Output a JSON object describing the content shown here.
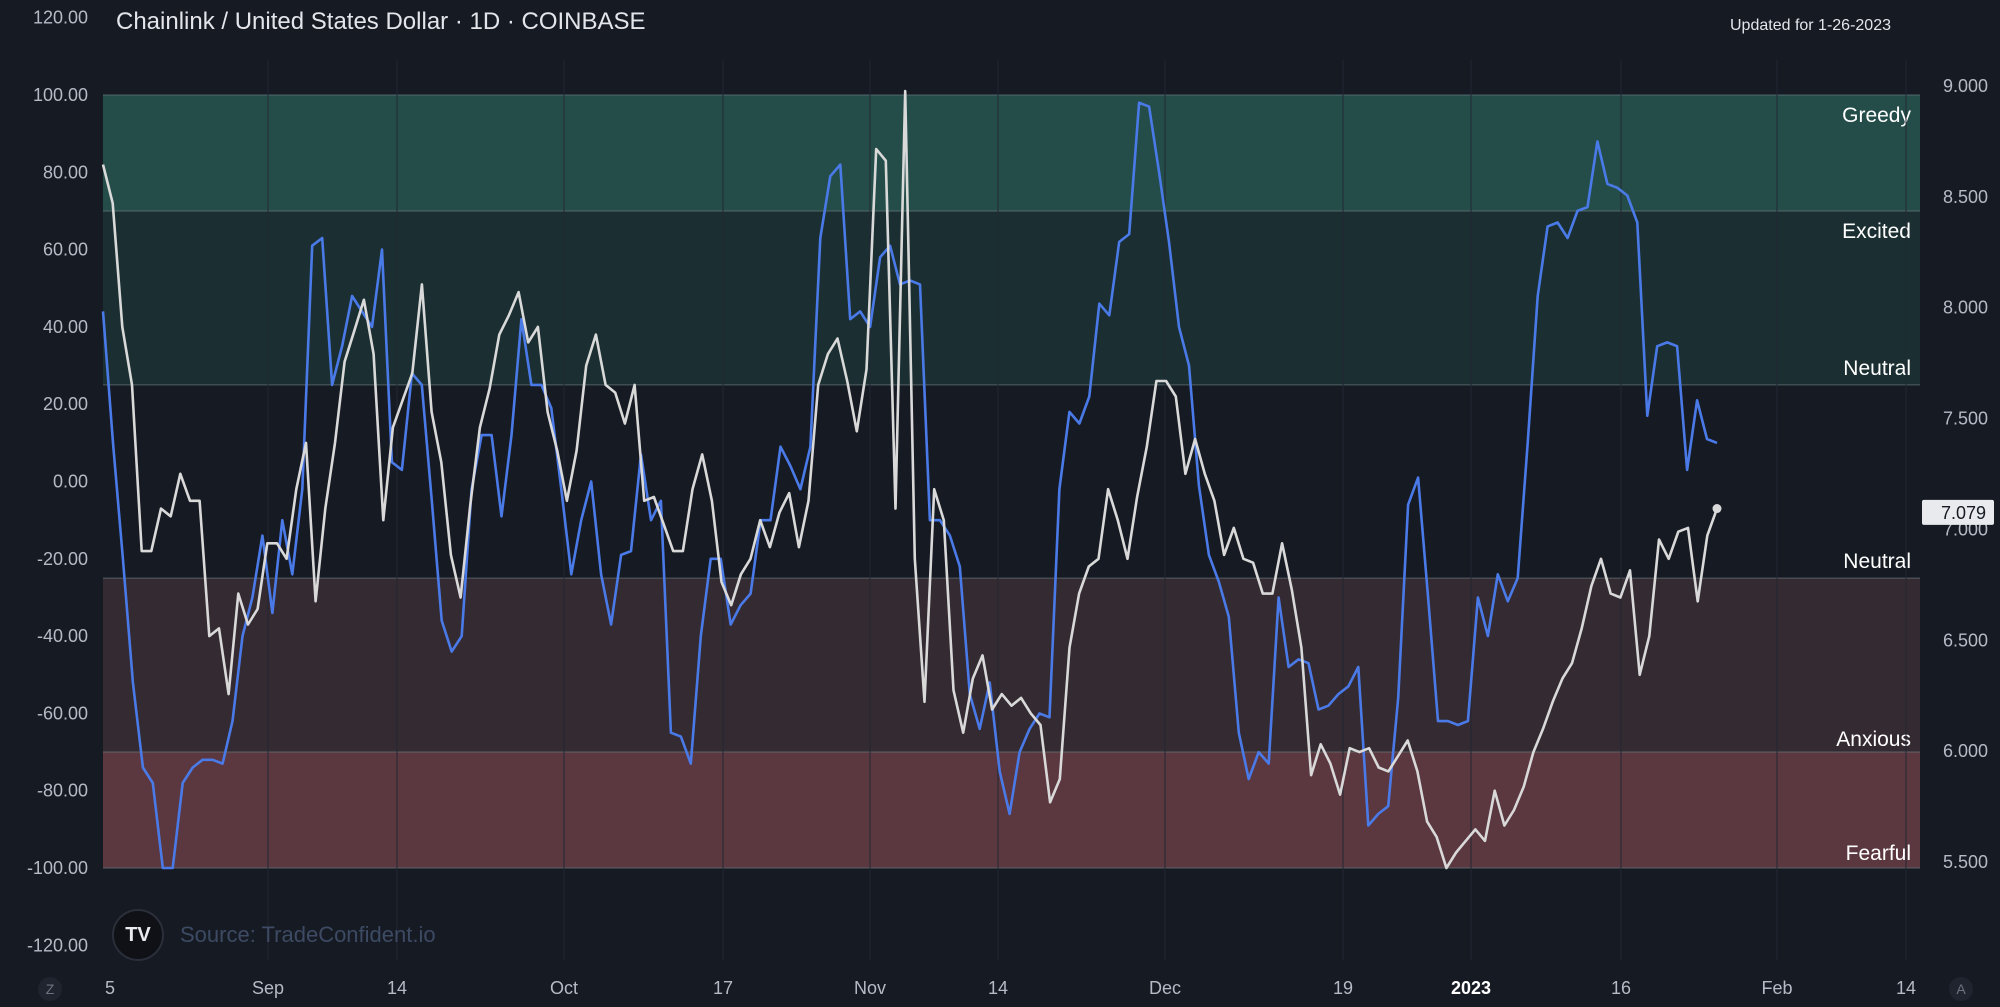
{
  "header": {
    "title": "Chainlink / United States Dollar · 1D · COINBASE",
    "updated": "Updated for 1-26-2023"
  },
  "source": {
    "logo_text": "TV",
    "label": "Source: TradeConfident.io"
  },
  "corner_buttons": {
    "left": "Z",
    "right": "A"
  },
  "chart_data": {
    "type": "line",
    "title": "Chainlink / United States Dollar · 1D · COINBASE",
    "x_ticks": [
      "5",
      "Sep",
      "14",
      "Oct",
      "17",
      "Nov",
      "14",
      "Dec",
      "19",
      "2023",
      "16",
      "Feb",
      "14"
    ],
    "y_left": {
      "range": [
        -120,
        120
      ],
      "ticks": [
        "120.00",
        "100.00",
        "80.00",
        "60.00",
        "40.00",
        "20.00",
        "0.00",
        "-20.00",
        "-40.00",
        "-60.00",
        "-80.00",
        "-100.00",
        "-120.00"
      ]
    },
    "y_right": {
      "range": [
        5.5,
        9.0
      ],
      "ticks": [
        "9.000",
        "8.500",
        "8.000",
        "7.500",
        "7.000",
        "6.500",
        "6.000",
        "5.500"
      ]
    },
    "zones": [
      {
        "label": "Greedy",
        "from": 70,
        "to": 100,
        "color": "#244d4a"
      },
      {
        "label": "Excited",
        "from": 25,
        "to": 70,
        "color": "#1b2f32"
      },
      {
        "label": "Neutral",
        "from": 0,
        "to": 25,
        "color": "#161a23"
      },
      {
        "label": "Neutral",
        "from": -25,
        "to": 0,
        "color": "#161a23"
      },
      {
        "label": "Anxious",
        "from": -70,
        "to": -25,
        "color": "#342a31"
      },
      {
        "label": "Fearful",
        "from": -100,
        "to": -70,
        "color": "#5b373f"
      }
    ],
    "last_price_label": "7.079",
    "series": [
      {
        "color": "#4a7ae8",
        "values": [
          44,
          10,
          -20,
          -52,
          -74,
          -78,
          -100,
          -100,
          -78,
          -74,
          -72,
          -72,
          -73,
          -62,
          -40,
          -30,
          -14,
          -34,
          -10,
          -24,
          -2,
          61,
          63,
          25,
          35,
          48,
          44,
          40,
          60,
          5,
          3,
          28,
          25,
          -5,
          -36,
          -44,
          -40,
          -2,
          12,
          12,
          -9,
          12,
          42,
          25,
          25,
          19,
          -2,
          -24,
          -10,
          0,
          -24,
          -37,
          -19,
          -18,
          7,
          -10,
          -5,
          -65,
          -66,
          -73,
          -40,
          -20,
          -20,
          -37,
          -32,
          -29,
          -10,
          -10,
          9,
          4,
          -2,
          9,
          63,
          79,
          82,
          42,
          44,
          40,
          58,
          61,
          51,
          52,
          51,
          -10,
          -10,
          -14,
          -22,
          -55,
          -64,
          -52,
          -75,
          -86,
          -70,
          -64,
          -60,
          -61,
          -2,
          18,
          15,
          22,
          46,
          43,
          62,
          64,
          98,
          97,
          80,
          62,
          40,
          30,
          -1,
          -19,
          -26,
          -35,
          -65,
          -77,
          -70,
          -73,
          -30,
          -48,
          -46,
          -47,
          -59,
          -58,
          -55,
          -53,
          -48,
          -89,
          -86,
          -84,
          -56,
          -6,
          1,
          -30,
          -62,
          -62,
          -63,
          -62,
          -30,
          -40,
          -24,
          -31,
          -25,
          10,
          48,
          66,
          67,
          63,
          70,
          71,
          88,
          77,
          76,
          74,
          67,
          17,
          35,
          36,
          35,
          3,
          21,
          11,
          10
        ]
      },
      {
        "color": "#d9d9d9",
        "values": [
          82,
          72,
          40,
          25,
          -18,
          -18,
          -7,
          -9,
          2,
          -5,
          -5,
          -40,
          -38,
          -55,
          -29,
          -37,
          -33,
          -16,
          -16,
          -20,
          -2,
          10,
          -31,
          -7,
          10,
          31,
          39,
          47,
          33,
          -10,
          14,
          21,
          28,
          51,
          18,
          5,
          -19,
          -30,
          -6,
          14,
          24,
          38,
          43,
          49,
          36,
          40,
          18,
          8,
          -5,
          8,
          30,
          38,
          25,
          23,
          15,
          25,
          -5,
          -4,
          -11,
          -18,
          -18,
          -2,
          7,
          -5,
          -26,
          -32,
          -24,
          -20,
          -10,
          -17,
          -8,
          -3,
          -17,
          -5,
          25,
          33,
          37,
          26,
          13,
          29,
          86,
          83,
          -7,
          101,
          -20,
          -57,
          -2,
          -10,
          -54,
          -65,
          -51,
          -45,
          -59,
          -55,
          -58,
          -56,
          -60,
          -63,
          -83,
          -77,
          -43,
          -29,
          -22,
          -20,
          -2,
          -10,
          -20,
          -4,
          9,
          26,
          26,
          22,
          2,
          11,
          2,
          -5,
          -19,
          -12,
          -20,
          -21,
          -29,
          -29,
          -16,
          -28,
          -43,
          -76,
          -68,
          -73,
          -81,
          -69,
          -70,
          -69,
          -74,
          -75,
          -71,
          -67,
          -75,
          -88,
          -92,
          -100,
          -96,
          -93,
          -90,
          -93,
          -80,
          -89,
          -85,
          -79,
          -70,
          -64,
          -57,
          -51,
          -47,
          -38,
          -27,
          -20,
          -29,
          -30,
          -23,
          -50,
          -40,
          -15,
          -20,
          -13,
          -12,
          -31,
          -14,
          -7
        ]
      }
    ]
  }
}
